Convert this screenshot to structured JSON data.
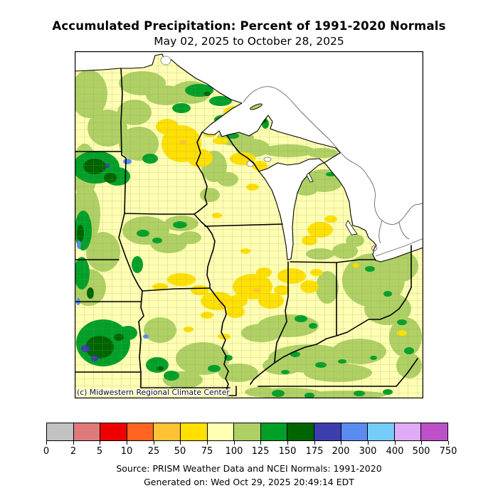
{
  "title": "Accumulated Precipitation: Percent of 1991-2020 Normals",
  "subtitle": "May 02, 2025 to October 28, 2025",
  "map": {
    "attribution": "(c) Midwestern Regional Climate Center",
    "region": "U.S. Midwest county-level choropleth",
    "states_outlined": [
      "Minnesota",
      "Wisconsin",
      "Michigan",
      "Iowa",
      "Illinois",
      "Indiana",
      "Ohio",
      "Missouri",
      "Kentucky"
    ],
    "water_bodies": [
      "Lake Superior",
      "Lake Michigan",
      "Lake Huron",
      "Lake Erie"
    ]
  },
  "legend": {
    "units": "percent of normal precipitation",
    "tick_labels": [
      "0",
      "2",
      "5",
      "10",
      "25",
      "50",
      "75",
      "100",
      "125",
      "150",
      "175",
      "200",
      "300",
      "400",
      "500",
      "750"
    ],
    "colors": [
      "#C2C2C2",
      "#E07A7A",
      "#EE0000",
      "#FF6420",
      "#FFC234",
      "#FFE000",
      "#FFFFB2",
      "#AFD163",
      "#00A028",
      "#006400",
      "#3B3EAC",
      "#5A8CF0",
      "#76CCF8",
      "#DFADF8",
      "#BB52CA"
    ]
  },
  "map_palette": {
    "base_75_100": "#FFFFB2",
    "light_green_100_125": "#AFD163",
    "yellow_50_75": "#FFE000",
    "green_125_150": "#00A028",
    "dark_green_150_175": "#006400",
    "blue_200_300": "#5A8CF0",
    "indigo_175_200": "#3B3EAC"
  },
  "footer": {
    "source": "Source: PRISM Weather Data and NCEI Normals: 1991-2020",
    "generated": "Generated on: Wed Oct 29, 2025 20:49:14 EDT"
  }
}
